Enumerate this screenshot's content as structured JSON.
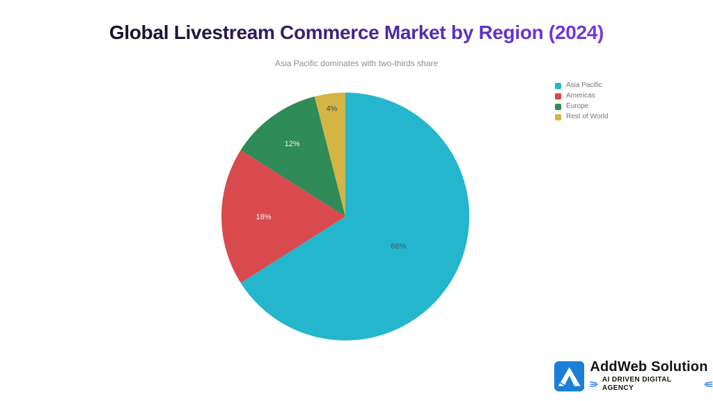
{
  "title_style": {
    "gradient_stops": [
      "#0b0b10",
      "#241644",
      "#5b2fc0",
      "#7c3aed"
    ]
  },
  "chart_data": {
    "type": "pie",
    "title": "Global Livestream Commerce Market by Region (2024)",
    "subtitle": "Asia Pacific dominates with two-thirds share",
    "legend_position": "top-right",
    "start_angle": "top",
    "direction": "clockwise",
    "categories": [
      "Asia Pacific",
      "Americas",
      "Europe",
      "Rest of World"
    ],
    "values": [
      66,
      18,
      12,
      4
    ],
    "slices": [
      {
        "label": "Asia Pacific",
        "value": 66,
        "display": "66%",
        "color": "#24b6cc",
        "label_color": "#445a60"
      },
      {
        "label": "Americas",
        "value": 18,
        "display": "18%",
        "color": "#d94a4e",
        "label_color": "#f3eeee"
      },
      {
        "label": "Europe",
        "value": 12,
        "display": "12%",
        "color": "#2f8b57",
        "label_color": "#f0f3f0"
      },
      {
        "label": "Rest of World",
        "value": 4,
        "display": "4%",
        "color": "#d2b545",
        "label_color": "#4c4c40"
      }
    ]
  },
  "footer_logo": {
    "name": "AddWeb Solution",
    "tagline": "AI DRIVEN DIGITAL AGENCY",
    "icon_color": "#1b7fd6",
    "accent_color": "#2e86f0",
    "text_color": "#101418"
  }
}
